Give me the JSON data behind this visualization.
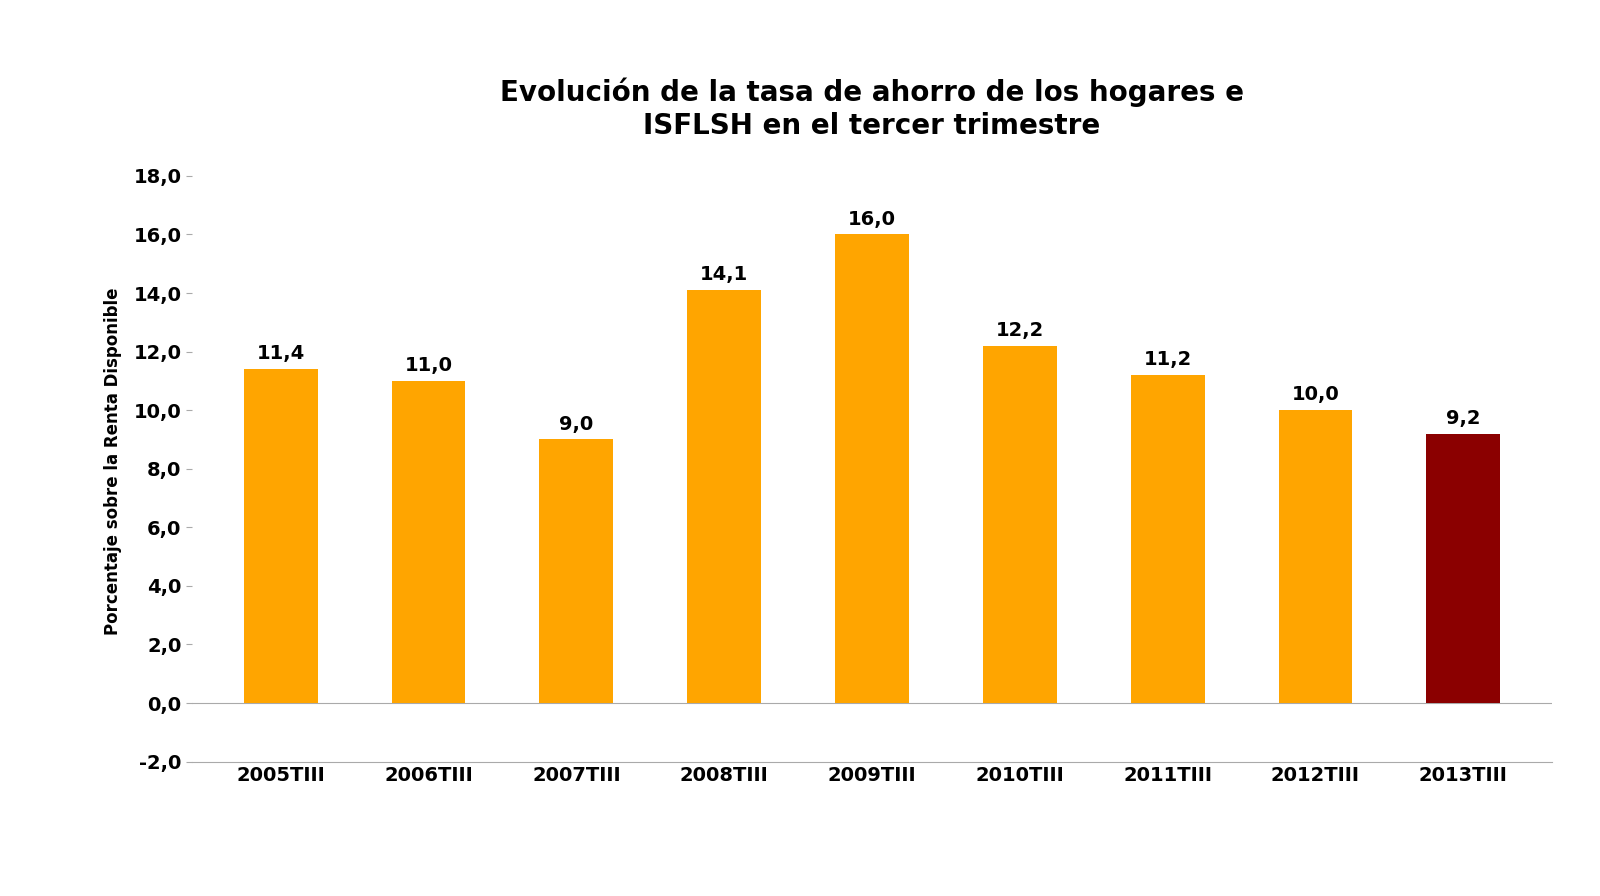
{
  "title": "Evolución de la tasa de ahorro de los hogares e\nISFLSH en el tercer trimestre",
  "ylabel": "Porcentaje sobre la Renta Disponible",
  "categories": [
    "2005TIII",
    "2006TIII",
    "2007TIII",
    "2008TIII",
    "2009TIII",
    "2010TIII",
    "2011TIII",
    "2012TIII",
    "2013TIII"
  ],
  "values": [
    11.4,
    11.0,
    9.0,
    14.1,
    16.0,
    12.2,
    11.2,
    10.0,
    9.2
  ],
  "bar_colors": [
    "#FFA500",
    "#FFA500",
    "#FFA500",
    "#FFA500",
    "#FFA500",
    "#FFA500",
    "#FFA500",
    "#FFA500",
    "#8B0000"
  ],
  "ylim": [
    -2.0,
    18.5
  ],
  "yticks": [
    -2.0,
    0.0,
    2.0,
    4.0,
    6.0,
    8.0,
    10.0,
    12.0,
    14.0,
    16.0,
    18.0
  ],
  "background_color": "#FFFFFF",
  "title_fontsize": 20,
  "label_fontsize": 12,
  "tick_fontsize": 14,
  "bar_label_fontsize": 14,
  "bar_width": 0.5
}
